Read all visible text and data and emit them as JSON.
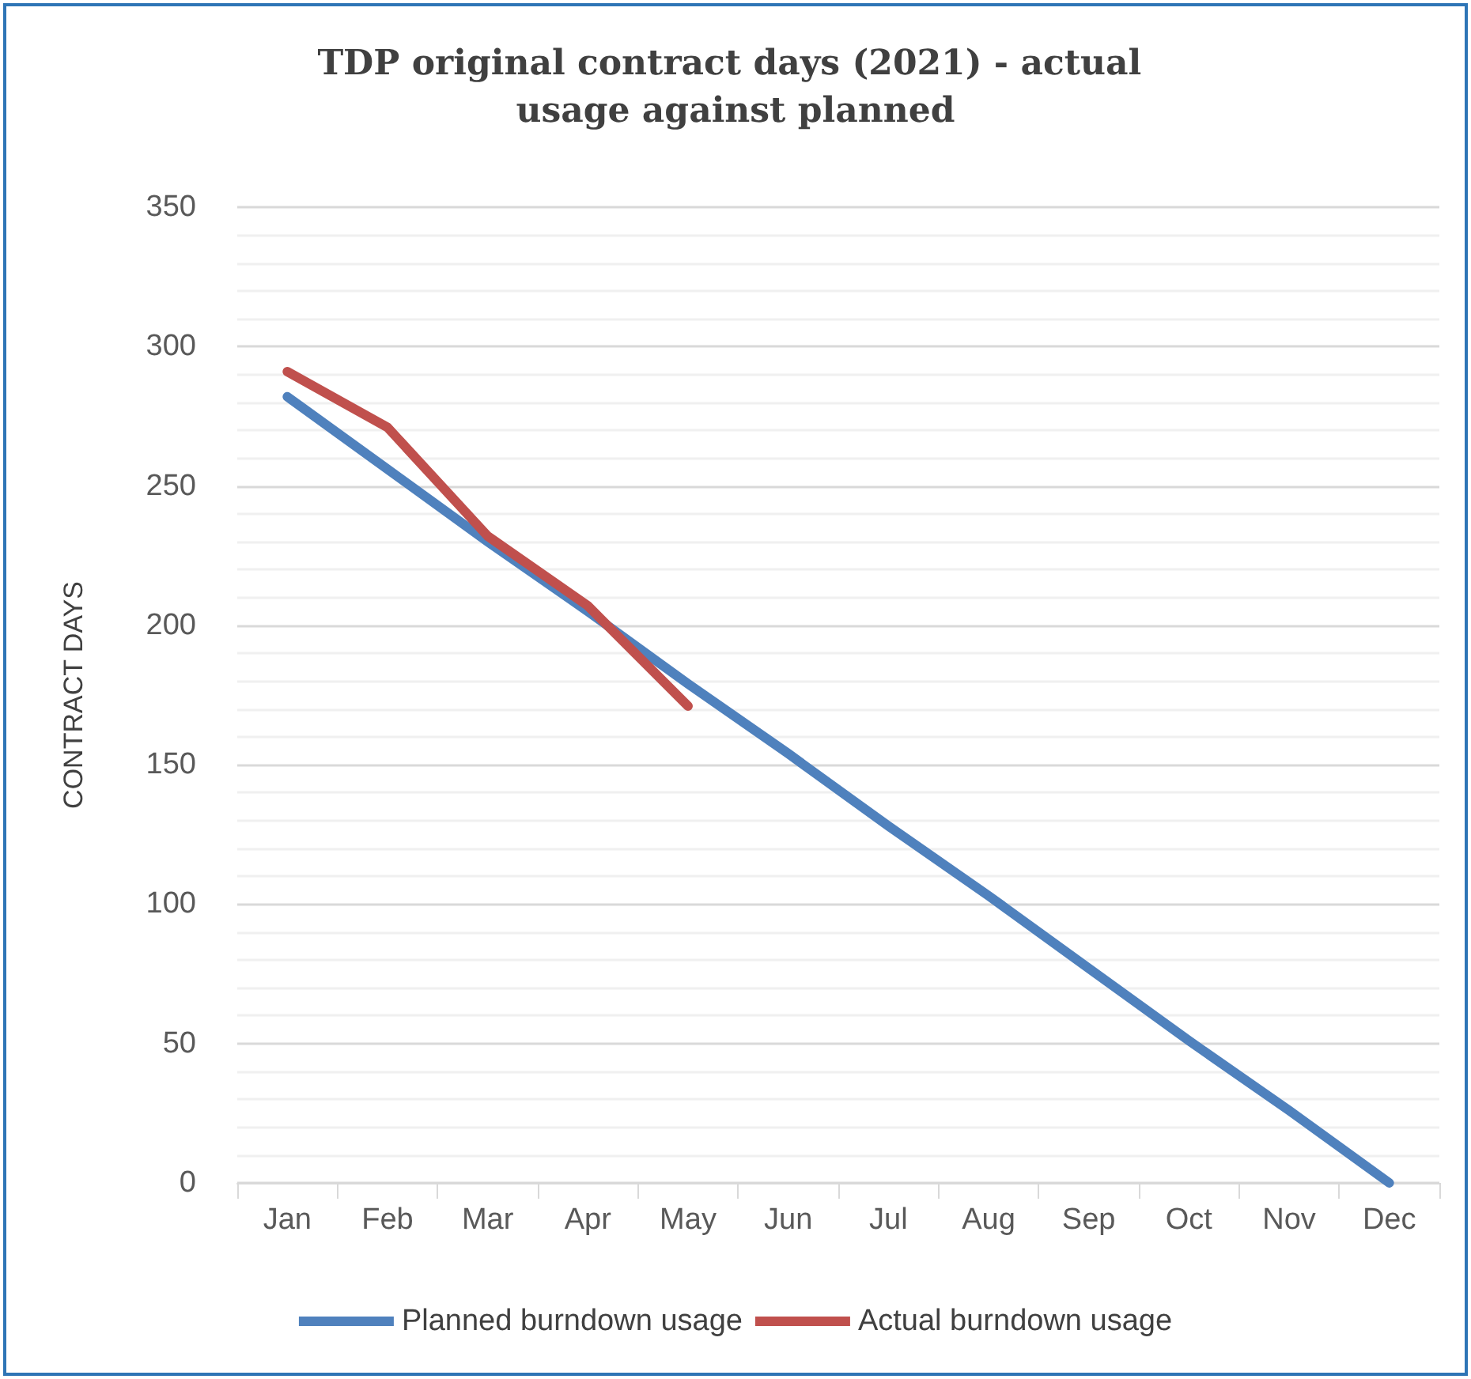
{
  "chart_data": {
    "type": "line",
    "title": "TDP original contract days (2021) - actual usage against planned",
    "ylabel": "CONTRACT DAYS",
    "categories": [
      "Jan",
      "Feb",
      "Mar",
      "Apr",
      "May",
      "Jun",
      "Jul",
      "Aug",
      "Sep",
      "Oct",
      "Nov",
      "Dec"
    ],
    "series": [
      {
        "name": "Planned burndown usage",
        "color": "#4f81bd",
        "values": [
          282,
          256,
          230,
          205,
          179,
          154,
          128,
          103,
          77,
          51,
          26,
          0
        ]
      },
      {
        "name": "Actual burndown usage",
        "color": "#c0504d",
        "values": [
          291,
          271,
          232,
          207,
          171,
          null,
          null,
          null,
          null,
          null,
          null,
          null
        ]
      }
    ],
    "ylim": [
      0,
      350
    ],
    "yticks": [
      0,
      50,
      100,
      150,
      200,
      250,
      300,
      350
    ],
    "grid": "y",
    "legend": "bottom",
    "marker": "none",
    "line_style": "solid"
  }
}
